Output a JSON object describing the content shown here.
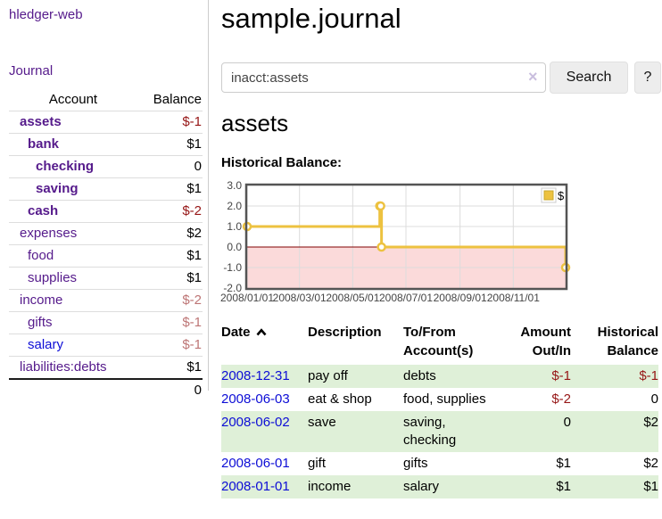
{
  "app": {
    "brand": "hledger-web",
    "nav_journal": "Journal"
  },
  "page": {
    "title": "sample.journal",
    "account_heading": "assets",
    "chart_label": "Historical Balance:"
  },
  "search": {
    "value": "inacct:assets",
    "clear_icon": "×",
    "button_label": "Search",
    "help_label": "?"
  },
  "sidebar_table": {
    "headers": {
      "account": "Account",
      "balance": "Balance"
    },
    "accounts": [
      {
        "name": "assets",
        "balance": "$-1"
      },
      {
        "name": "bank",
        "balance": "$1"
      },
      {
        "name": "checking",
        "balance": "0"
      },
      {
        "name": "saving",
        "balance": "$1"
      },
      {
        "name": "cash",
        "balance": "$-2"
      },
      {
        "name": "expenses",
        "balance": "$2"
      },
      {
        "name": "food",
        "balance": "$1"
      },
      {
        "name": "supplies",
        "balance": "$1"
      },
      {
        "name": "income",
        "balance": "$-2"
      },
      {
        "name": "gifts",
        "balance": "$-1"
      },
      {
        "name": "salary",
        "balance": "$-1"
      },
      {
        "name": "liabilities:debts",
        "balance": "$1"
      }
    ],
    "total": "0"
  },
  "register_table": {
    "headers": {
      "date": "Date",
      "description": "Description",
      "accounts": "To/From Account(s)",
      "amount": "Amount Out/In",
      "historical": "Historical Balance"
    },
    "rows": [
      {
        "date": "2008-12-31",
        "description": "pay off",
        "accounts": "debts",
        "amount": "$-1",
        "balance": "$-1"
      },
      {
        "date": "2008-06-03",
        "description": "eat & shop",
        "accounts": "food, supplies",
        "amount": "$-2",
        "balance": "0"
      },
      {
        "date": "2008-06-02",
        "description": "save",
        "accounts": "saving, checking",
        "amount": "0",
        "balance": "$2"
      },
      {
        "date": "2008-06-01",
        "description": "gift",
        "accounts": "gifts",
        "amount": "$1",
        "balance": "$2"
      },
      {
        "date": "2008-01-01",
        "description": "income",
        "accounts": "salary",
        "amount": "$1",
        "balance": "$1"
      }
    ]
  },
  "chart_data": {
    "type": "line",
    "step": true,
    "title": "Historical Balance:",
    "series": [
      {
        "name": "$",
        "color": "#edc240",
        "points": [
          [
            "2008-01-01",
            1
          ],
          [
            "2008-06-01",
            2
          ],
          [
            "2008-06-02",
            2
          ],
          [
            "2008-06-03",
            0
          ],
          [
            "2008-12-31",
            -1
          ]
        ]
      }
    ],
    "x_range": [
      "2008-01-01",
      "2008-12-31"
    ],
    "ylim": [
      -2,
      3
    ],
    "yticks": [
      "3.0",
      "2.0",
      "1.0",
      "0.0",
      "-1.0",
      "-2.0"
    ],
    "xticks": [
      "2008/01/01",
      "2008/03/01",
      "2008/05/01",
      "2008/07/01",
      "2008/09/01",
      "2008/11/01"
    ],
    "legend_position": "top-right",
    "grid_on": true,
    "grid_color": "#dcdcdc",
    "border_color": "#545454",
    "zero_line_color": "#800000",
    "negative_region_color": "#fbdada"
  },
  "colors": {
    "link_visited_purple": "#551a8b",
    "link_blue": "#0d0dd6",
    "negative_strong": "#961616",
    "negative_soft": "#bd7575",
    "row_stripe_green": "#dff0d8",
    "chart_line_yellow": "#edc240"
  }
}
